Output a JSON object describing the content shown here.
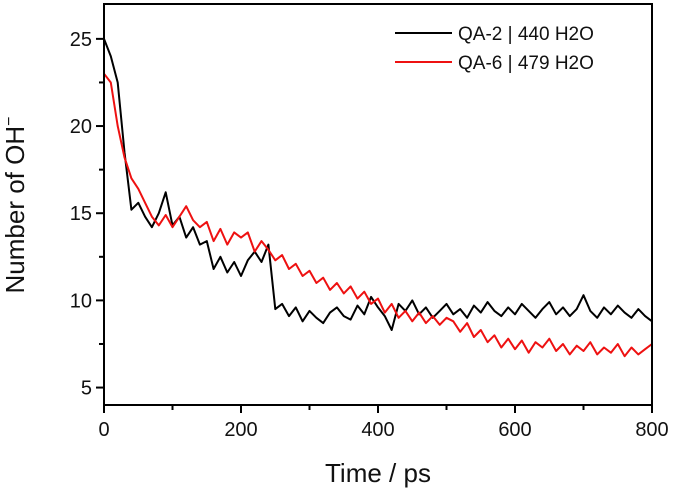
{
  "chart_data": {
    "type": "line",
    "title": "",
    "xlabel": "Time / ps",
    "ylabel": "Number of OH",
    "ylabel_superscript": "−",
    "xlim": [
      0,
      800
    ],
    "ylim": [
      4,
      27
    ],
    "xticks": [
      0,
      200,
      400,
      600,
      800
    ],
    "yticks": [
      5,
      10,
      15,
      20,
      25
    ],
    "grid": false,
    "legend_position": "top-right",
    "x": [
      0,
      10,
      20,
      30,
      40,
      50,
      60,
      70,
      80,
      90,
      100,
      110,
      120,
      130,
      140,
      150,
      160,
      170,
      180,
      190,
      200,
      210,
      220,
      230,
      240,
      250,
      260,
      270,
      280,
      290,
      300,
      310,
      320,
      330,
      340,
      350,
      360,
      370,
      380,
      390,
      400,
      410,
      420,
      430,
      440,
      450,
      460,
      470,
      480,
      490,
      500,
      510,
      520,
      530,
      540,
      550,
      560,
      570,
      580,
      590,
      600,
      610,
      620,
      630,
      640,
      650,
      660,
      670,
      680,
      690,
      700,
      710,
      720,
      730,
      740,
      750,
      760,
      770,
      780,
      790,
      800
    ],
    "series": [
      {
        "name": "QA-2 | 440 H2O",
        "color": "#000000",
        "values": [
          25.0,
          24.0,
          22.5,
          18.5,
          15.2,
          15.6,
          14.8,
          14.2,
          15.0,
          16.2,
          14.3,
          14.8,
          13.6,
          14.2,
          13.2,
          13.4,
          11.8,
          12.5,
          11.6,
          12.2,
          11.4,
          12.3,
          12.8,
          12.2,
          13.2,
          9.5,
          9.8,
          9.1,
          9.6,
          8.8,
          9.4,
          9.0,
          8.7,
          9.3,
          9.6,
          9.1,
          8.9,
          9.7,
          9.2,
          10.2,
          9.6,
          9.1,
          8.3,
          9.8,
          9.4,
          10.0,
          9.2,
          9.6,
          9.0,
          9.4,
          9.8,
          9.2,
          9.5,
          9.0,
          9.7,
          9.3,
          9.9,
          9.4,
          9.1,
          9.6,
          9.2,
          9.8,
          9.4,
          9.0,
          9.5,
          9.9,
          9.2,
          9.6,
          9.1,
          9.5,
          10.3,
          9.4,
          9.0,
          9.6,
          9.2,
          9.7,
          9.3,
          9.0,
          9.5,
          9.1,
          8.8
        ]
      },
      {
        "name": "QA-6 | 479 H2O",
        "color": "#ee1111",
        "values": [
          23.0,
          22.5,
          20.0,
          18.2,
          17.0,
          16.4,
          15.6,
          14.8,
          14.3,
          14.9,
          14.2,
          14.8,
          15.4,
          14.6,
          14.2,
          14.5,
          13.4,
          14.1,
          13.2,
          13.9,
          13.6,
          13.9,
          12.8,
          13.4,
          12.9,
          12.3,
          12.6,
          11.8,
          12.1,
          11.4,
          11.7,
          11.0,
          11.3,
          10.6,
          11.0,
          10.4,
          10.8,
          10.1,
          10.5,
          9.8,
          10.1,
          9.3,
          9.8,
          9.0,
          9.4,
          8.8,
          9.3,
          8.7,
          9.1,
          8.6,
          9.0,
          8.8,
          8.2,
          8.7,
          7.9,
          8.3,
          7.6,
          8.0,
          7.3,
          7.8,
          7.2,
          7.7,
          7.0,
          7.6,
          7.3,
          7.8,
          7.1,
          7.5,
          6.9,
          7.4,
          7.1,
          7.6,
          6.9,
          7.3,
          7.0,
          7.5,
          6.8,
          7.3,
          6.9,
          7.2,
          7.5
        ]
      }
    ]
  }
}
